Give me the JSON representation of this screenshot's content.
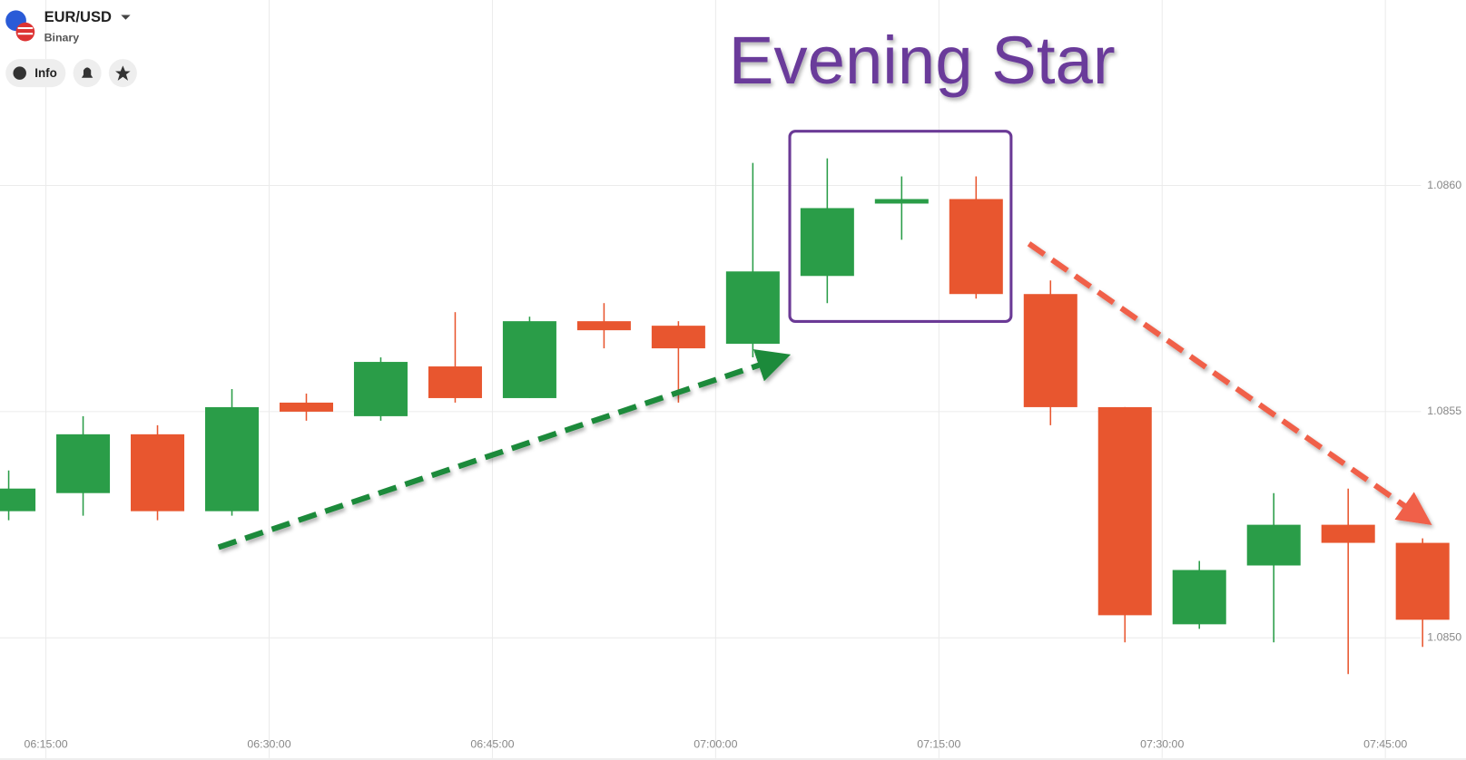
{
  "header": {
    "symbol": "EUR/USD",
    "mode": "Binary",
    "info_button": "Info"
  },
  "chart_data": {
    "type": "candlestick",
    "annotation": "Evening Star",
    "up_color": "#2a9d48",
    "down_color": "#e8562f",
    "grid": true,
    "x": [
      "06:12:30",
      "06:17:30",
      "06:22:30",
      "06:27:30",
      "06:32:30",
      "06:37:30",
      "06:42:30",
      "06:47:30",
      "06:52:30",
      "06:57:30",
      "07:02:30",
      "07:07:30",
      "07:12:30",
      "07:17:30",
      "07:22:30",
      "07:27:30",
      "07:32:30",
      "07:37:30",
      "07:42:30",
      "07:47:30"
    ],
    "open": [
      1.08528,
      1.08532,
      1.08545,
      1.08528,
      1.08552,
      1.08549,
      1.0856,
      1.08553,
      1.0857,
      1.08569,
      1.08565,
      1.0858,
      1.08596,
      1.08597,
      1.08576,
      1.08551,
      1.08503,
      1.08516,
      1.08525,
      1.08521
    ],
    "high": [
      1.08537,
      1.08549,
      1.08547,
      1.08555,
      1.08554,
      1.08562,
      1.08572,
      1.08571,
      1.08574,
      1.0857,
      1.08605,
      1.08606,
      1.08602,
      1.08602,
      1.08579,
      1.08551,
      1.08517,
      1.08532,
      1.08533,
      1.08522
    ],
    "low": [
      1.08526,
      1.08527,
      1.08526,
      1.08527,
      1.08548,
      1.08548,
      1.08552,
      1.08553,
      1.08564,
      1.08552,
      1.08562,
      1.08574,
      1.08588,
      1.08575,
      1.08547,
      1.08499,
      1.08502,
      1.08499,
      1.08492,
      1.08498
    ],
    "close": [
      1.08533,
      1.08545,
      1.08528,
      1.08551,
      1.0855,
      1.08561,
      1.08553,
      1.0857,
      1.08568,
      1.08564,
      1.08581,
      1.08595,
      1.08597,
      1.08576,
      1.08551,
      1.08505,
      1.08515,
      1.08525,
      1.08521,
      1.08504
    ],
    "xlim": [
      "06:11:55",
      "07:50:25"
    ],
    "xticks": [
      "06:15:00",
      "06:30:00",
      "06:45:00",
      "07:00:00",
      "07:15:00",
      "07:30:00",
      "07:45:00"
    ],
    "ylim": [
      1.08473,
      1.08641
    ],
    "yticks": [
      {
        "value": 1.086,
        "label": "1.0860"
      },
      1.0855,
      {
        "value": 1.085,
        "label": "1.0850"
      }
    ]
  }
}
